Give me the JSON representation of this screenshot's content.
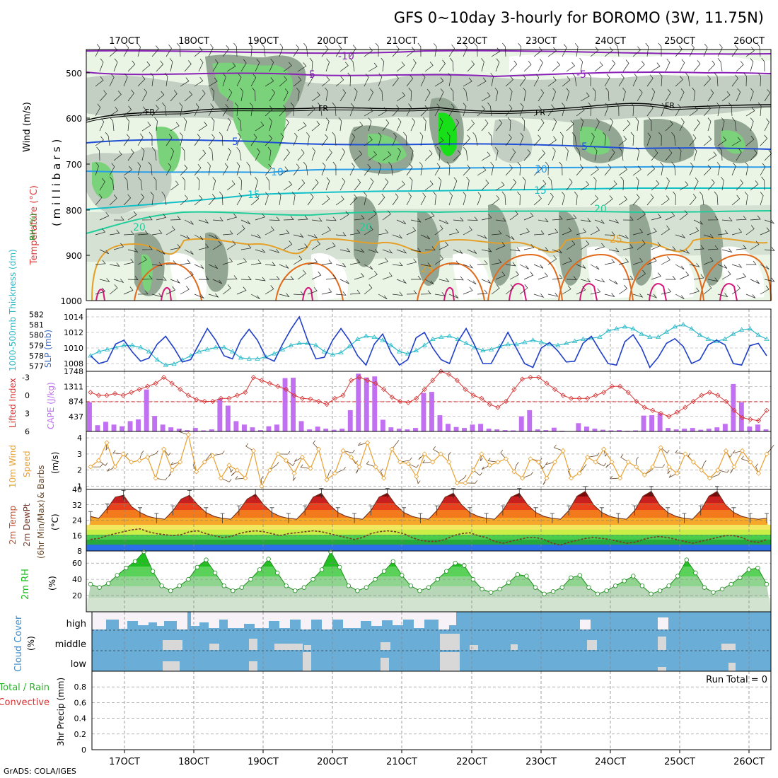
{
  "header": {
    "title": "GFS 0~10day 3-hourly for BOROMO (3W, 11.75N)",
    "credit": "GrADS: COLA/IGES"
  },
  "colors": {
    "rh_light": "#eaf5e6",
    "rh_mid": "#c3cfc3",
    "rh_dark": "#93a593",
    "rh_green": "#7ad27a",
    "rh_bright": "#18e018",
    "temp_purple": "#8a22b8",
    "temp_blue": "#1f4fd6",
    "temp_lightblue": "#2a9ee8",
    "temp_cyan": "#12c0c8",
    "temp_teal": "#1fce9a",
    "temp_orange": "#e4a028",
    "temp_darkorange": "#e26a1a",
    "temp_magenta": "#d8157a",
    "slp_line": "#1f3fc8",
    "thickness_line": "#2bbac8",
    "li_line": "#d83232",
    "cape_bars": "#c070f0",
    "wind_line": "#e8a030",
    "barb": "#6b4a2a",
    "dewpoint": "#7a3a2a",
    "rh2m": "#1fbf1f",
    "cloud_blue": "#6aaed8",
    "cloud_white": "#f6f2f8",
    "cloud_grey": "#d8d8d8"
  },
  "x_axis": {
    "tick_labels": [
      "17OCT",
      "18OCT",
      "19OCT",
      "20OCT",
      "21OCT",
      "22OCT",
      "23OCT",
      "24OCT",
      "25OCT",
      "26OCT"
    ]
  },
  "panels": {
    "upper": {
      "label_rh": "RH (%)",
      "label_temp": "Temperature (°C)",
      "label_wind": "Wind (m/s)",
      "label_axis": "( m i l l i b a r s )",
      "y_ticks": [
        "500",
        "600",
        "700",
        "800",
        "900",
        "1000"
      ],
      "freezing_label": "FR",
      "contour_labels": [
        "-10",
        "-5",
        "5",
        "10",
        "15",
        "20",
        "25"
      ]
    },
    "pressure": {
      "label_thickness": "1000-500mb Thickness (dm)",
      "label_slp": "SLP (mb)",
      "thickness_ticks": [
        "582",
        "581",
        "580",
        "579",
        "578",
        "577"
      ],
      "slp_ticks": [
        "1014",
        "1012",
        "1010",
        "1008"
      ]
    },
    "stability": {
      "label_li": "Lifted Index",
      "label_cape": "CAPE (J/kg)",
      "li_ticks": [
        "-3",
        "0",
        "3",
        "6"
      ],
      "cape_ticks": [
        "1748",
        "1311",
        "874",
        "437"
      ]
    },
    "wind10m": {
      "label_1": "10m Wind",
      "label_2": "Speed",
      "label_3": "& Barbs",
      "label_units": "(m/s)",
      "y_ticks": [
        "4",
        "3",
        "2",
        "1"
      ]
    },
    "temp2m": {
      "label_1": "2m Temp",
      "label_2": "2m DewPt",
      "label_3": "(6hr Min/Max)",
      "label_units": "(°C)",
      "y_ticks": [
        "40",
        "32",
        "24",
        "16",
        "8"
      ]
    },
    "rh2m": {
      "label": "2m RH",
      "label_units": "(%)",
      "y_ticks": [
        "60",
        "40",
        "20"
      ]
    },
    "cloud": {
      "label": "Cloud Cover",
      "label_units": "(%)",
      "levels": [
        "high",
        "middle",
        "low"
      ]
    },
    "precip": {
      "label_1": "Total / Rain",
      "label_2": "Convective",
      "label_axis": "3hr Precip (mm)",
      "run_total": "Run Total = 0",
      "y_ticks": [
        "0.8",
        "0.6",
        "0.4",
        "0.2",
        "0"
      ]
    }
  },
  "chart_data": [
    {
      "type": "line",
      "title": "Sea level pressure (mb)",
      "y_range": [
        1007,
        1015
      ],
      "values": [
        1009,
        1008,
        1008.3,
        1010.5,
        1011,
        1009.5,
        1008.3,
        1008.7,
        1010.5,
        1011.5,
        1010,
        1008.2,
        1008.5,
        1010.5,
        1012.5,
        1011,
        1009,
        1008.6,
        1011,
        1012.4,
        1011,
        1008.8,
        1008.3,
        1010.5,
        1012.4,
        1014,
        1011,
        1008.6,
        1008.8,
        1011,
        1012.5,
        1011,
        1009,
        1007.8,
        1010.5,
        1011.8,
        1009.4,
        1007.8,
        1008.5,
        1011.3,
        1012,
        1010,
        1008.5,
        1008,
        1010.8,
        1012.5,
        1010.4,
        1008,
        1008,
        1010,
        1012,
        1010,
        1008,
        1007.5,
        1010,
        1010.7,
        1009.6,
        1008.2,
        1008.3,
        1010.6,
        1011.5,
        1009.7,
        1008,
        1007.8,
        1010.8,
        1011.7,
        1010,
        1007.5,
        1008.8,
        1010.6,
        1011.2,
        1010.2,
        1008,
        1008.5,
        1010.4,
        1011,
        1010.4,
        1008,
        1007.8,
        1010.3,
        1010.6,
        1009
      ]
    },
    {
      "type": "line",
      "title": "1000-500mb thickness (dm)",
      "y_range": [
        576.5,
        582.5
      ],
      "values": [
        578,
        578.4,
        578.6,
        578.8,
        579,
        579,
        578.8,
        578.4,
        577.6,
        577.1,
        577.2,
        577.6,
        578,
        578.4,
        578.6,
        578.8,
        578.8,
        578.4,
        577.8,
        577.7,
        577.7,
        577.9,
        578.2,
        578.6,
        579,
        579.2,
        579.2,
        579,
        578.4,
        578.1,
        578.3,
        578.9,
        579.6,
        579.9,
        579.8,
        579.5,
        579,
        578.4,
        578.2,
        578.5,
        579,
        579.6,
        579.8,
        579.9,
        579.6,
        579.2,
        578.8,
        578.5,
        578.6,
        578.9,
        579.1,
        579.1,
        579.3,
        579.5,
        579.3,
        579.1,
        579,
        579.2,
        579.4,
        579.6,
        579.7,
        579.8,
        580.4,
        580.6,
        580.8,
        580.6,
        580.1,
        579.8,
        579.8,
        580.3,
        580.8,
        581,
        580.6,
        580,
        579.6,
        579.4,
        579.6,
        580.1,
        580.5,
        580.6,
        580,
        579.6
      ]
    },
    {
      "type": "bar",
      "title": "CAPE (J/kg)",
      "y_range": [
        0,
        1748
      ],
      "values": [
        850,
        180,
        280,
        200,
        150,
        300,
        350,
        1220,
        450,
        200,
        120,
        80,
        40,
        100,
        30,
        60,
        950,
        750,
        300,
        200,
        120,
        40,
        150,
        200,
        1550,
        1560,
        300,
        60,
        140,
        80,
        50,
        80,
        620,
        1680,
        1570,
        1600,
        340,
        120,
        80,
        60,
        100,
        1120,
        1150,
        470,
        220,
        130,
        100,
        200,
        220,
        80,
        60,
        40,
        30,
        440,
        620,
        60,
        40,
        110,
        20,
        10,
        240,
        140,
        80,
        50,
        30,
        40,
        20,
        30,
        460,
        470,
        520,
        100,
        60,
        80,
        100,
        50,
        80,
        120,
        220,
        1380,
        850,
        140,
        200,
        60
      ]
    },
    {
      "type": "line",
      "title": "Lifted Index",
      "y_range": [
        -4,
        6
      ],
      "values": [
        -0.5,
        0,
        0,
        -0.3,
        0,
        -0.5,
        -1,
        -1.5,
        -2,
        -3,
        -2,
        -1,
        0,
        0.7,
        1,
        1,
        0.5,
        0.5,
        0,
        -0.5,
        -3,
        -2.5,
        -2,
        -1.5,
        -1,
        0,
        0.5,
        0.6,
        1,
        1.5,
        0.5,
        0,
        -2.5,
        -3,
        -2.5,
        -2,
        -1,
        0.3,
        1,
        1.2,
        0.5,
        -1,
        -2.5,
        -4,
        -3.5,
        -2.5,
        -1,
        0,
        0.5,
        1.5,
        2,
        1,
        -1,
        -2.7,
        -3,
        -3,
        -2,
        -1,
        0,
        0.5,
        0.5,
        0.5,
        0,
        -0.5,
        -1.5,
        -1.5,
        -0.5,
        1,
        2,
        2.5,
        3,
        3.5,
        2.8,
        2,
        1,
        0,
        -0.5,
        0,
        1,
        2.5,
        3.7,
        4,
        4.2,
        2.5
      ]
    },
    {
      "type": "line",
      "title": "10m wind speed (m/s)",
      "y_range": [
        0.8,
        4.4
      ],
      "values": [
        2.2,
        2.6,
        3.7,
        2.2,
        3,
        2.5,
        2.6,
        2.8,
        1.5,
        3.3,
        2,
        2.5,
        4.2,
        1.9,
        2.5,
        2.9,
        1.5,
        2.3,
        2,
        1.5,
        3.2,
        1,
        2,
        3,
        2.6,
        1.8,
        2.8,
        2.1,
        3.3,
        1.4,
        1.8,
        3.2,
        2.8,
        2.2,
        3.7,
        2.2,
        1.5,
        3.3,
        2.5,
        2.4,
        1.6,
        3,
        2.5,
        3,
        2.5,
        1.2,
        1.2,
        2,
        3,
        2.3,
        2.5,
        2.7,
        1.9,
        1.5,
        2.7,
        2.5,
        1.5,
        2.5,
        3.2,
        1.5,
        1.8,
        2.8,
        2.5,
        3.3,
        2.5,
        1.5,
        2.5,
        2.2,
        1.7,
        2.2,
        3.4,
        2.2,
        1.8,
        3,
        2.5,
        2,
        1.5,
        2,
        3.2,
        2.2,
        3.2,
        2.5,
        1.8,
        3
      ]
    },
    {
      "type": "area",
      "title": "2m temperature (°C)",
      "y_range": [
        8,
        40
      ],
      "values": [
        26,
        25,
        30,
        36,
        37,
        31,
        28,
        26,
        25,
        24.5,
        29,
        35,
        37,
        32,
        28,
        26,
        25,
        24.5,
        29,
        35,
        37.5,
        32,
        28,
        26,
        25,
        24.5,
        29,
        36,
        38,
        32,
        28,
        26,
        25,
        24.5,
        29,
        36,
        38,
        32,
        28,
        26,
        25,
        24.5,
        29,
        36,
        38,
        32,
        28,
        26,
        25,
        24.5,
        29,
        36,
        38,
        32,
        28,
        26,
        25,
        24.5,
        29,
        36.5,
        39,
        32,
        28,
        26,
        25,
        24.5,
        29,
        36.5,
        39,
        32,
        28,
        26,
        25,
        24.5,
        29,
        36.5,
        39,
        32,
        28,
        26,
        25,
        24.5,
        25
      ]
    },
    {
      "type": "line",
      "title": "2m dew point (°C)",
      "y_range": [
        8,
        40
      ],
      "values": [
        14,
        14.5,
        16,
        17,
        18,
        19,
        19.5,
        18,
        17,
        16.5,
        16,
        16.5,
        18,
        18.5,
        17,
        16,
        15,
        15.5,
        17,
        18,
        18.5,
        18,
        17,
        16,
        17,
        17.5,
        18,
        18.5,
        18,
        17,
        16,
        15,
        14,
        15,
        17,
        18,
        18.5,
        18,
        17,
        15,
        13.5,
        13,
        13,
        14,
        16,
        17,
        17.5,
        16,
        15,
        13,
        12,
        13,
        14,
        15,
        15,
        14,
        12,
        11,
        12.5,
        13.5,
        14.5,
        15,
        14.5,
        14,
        13,
        12,
        12.5,
        14,
        15,
        15.5,
        15,
        14,
        13,
        12,
        13,
        14,
        15,
        16,
        16,
        15,
        13,
        12.5,
        14
      ]
    },
    {
      "type": "area",
      "title": "2m relative humidity (%)",
      "y_range": [
        0,
        75
      ],
      "values": [
        34,
        30,
        35,
        45,
        54,
        62,
        74,
        50,
        32,
        26,
        32,
        40,
        55,
        64,
        48,
        32,
        26,
        30,
        40,
        52,
        65,
        48,
        32,
        26,
        30,
        40,
        52,
        74,
        55,
        32,
        26,
        30,
        40,
        50,
        62,
        45,
        32,
        26,
        30,
        40,
        50,
        60,
        57,
        40,
        28,
        24,
        28,
        36,
        46,
        44,
        30,
        22,
        25,
        30,
        42,
        45,
        30,
        22,
        26,
        32,
        38,
        44,
        32,
        22,
        26,
        32,
        44,
        64,
        48,
        30,
        24,
        28,
        34,
        42,
        52,
        54,
        34
      ]
    },
    {
      "type": "bar",
      "title": "Cloud cover (%) high / middle / low",
      "series": [
        {
          "name": "high",
          "values": [
            0,
            0,
            0,
            0,
            0,
            0,
            0,
            0,
            0,
            0,
            0,
            0,
            0,
            0,
            0,
            0,
            0,
            0,
            0,
            0,
            0,
            0,
            0,
            0,
            0,
            0,
            0,
            0,
            0,
            0,
            0,
            0
          ]
        },
        {
          "name": "middle",
          "values": [
            0,
            0,
            0,
            0,
            0,
            0,
            0,
            0,
            0,
            0,
            0,
            0,
            0,
            0,
            0,
            0,
            0,
            0,
            0,
            0,
            0,
            0,
            0,
            0,
            0,
            0,
            0,
            0,
            0,
            0,
            0,
            0
          ]
        },
        {
          "name": "low",
          "values": [
            0,
            0,
            0,
            0,
            0,
            0,
            0,
            0,
            0,
            0,
            0,
            0,
            0,
            0,
            0,
            0,
            0,
            0,
            0,
            0,
            0,
            0,
            0,
            0,
            0,
            0,
            0,
            0,
            0,
            0,
            0,
            0
          ]
        }
      ]
    },
    {
      "type": "bar",
      "title": "3hr Precip (mm)",
      "y_range": [
        0,
        1
      ],
      "values": [
        0,
        0,
        0,
        0,
        0,
        0,
        0,
        0,
        0,
        0,
        0,
        0,
        0,
        0,
        0,
        0,
        0,
        0,
        0,
        0,
        0,
        0,
        0,
        0,
        0,
        0,
        0,
        0,
        0,
        0,
        0,
        0,
        0,
        0,
        0,
        0,
        0,
        0,
        0,
        0
      ]
    }
  ]
}
